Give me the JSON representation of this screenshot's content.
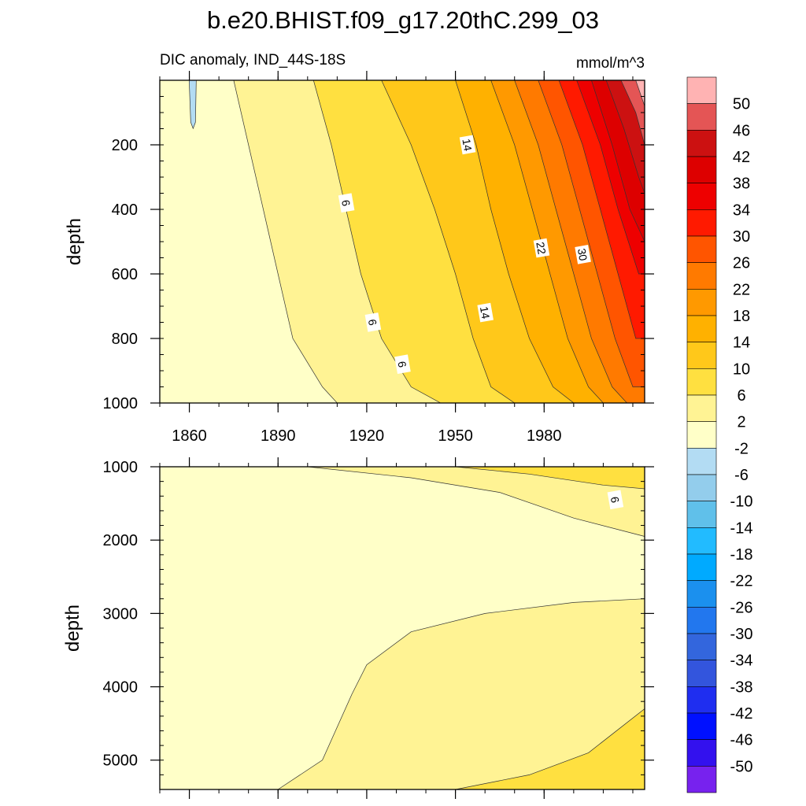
{
  "chart_data": {
    "type": "heatmap",
    "subtype": "filled-contour",
    "title": "b.e20.BHIST.f09_g17.20thC.299_03",
    "subtitle_left": "DIC anomaly, IND_44S-18S",
    "subtitle_right": "mmol/m^3",
    "xlabel": "",
    "ylabel": "depth",
    "x_range": [
      1850,
      2014
    ],
    "x_ticks": [
      "1860",
      "1890",
      "1920",
      "1950",
      "1980"
    ],
    "x_tick_values": [
      1860,
      1890,
      1920,
      1950,
      1980
    ],
    "panels": [
      {
        "name": "upper",
        "depth_range": [
          0,
          1000
        ],
        "y_ticks": [
          "200",
          "400",
          "600",
          "800",
          "1000"
        ],
        "y_tick_values": [
          200,
          400,
          600,
          800,
          1000
        ],
        "contour_boundary_years": [
          {
            "level": 2,
            "years": [
              1875,
              1880,
              1885,
              1890,
              1895,
              1905,
              1910
            ],
            "depths": [
              0,
              200,
              400,
              600,
              800,
              950,
              1000
            ]
          },
          {
            "level": 6,
            "years": [
              1902,
              1908,
              1913,
              1918,
              1925,
              1935,
              1945
            ],
            "depths": [
              0,
              200,
              400,
              600,
              800,
              950,
              1000
            ]
          },
          {
            "level": 10,
            "years": [
              1925,
              1935,
              1943,
              1950,
              1956,
              1962,
              1970
            ],
            "depths": [
              0,
              200,
              400,
              600,
              800,
              950,
              1000
            ]
          },
          {
            "level": 14,
            "years": [
              1950,
              1957,
              1962,
              1968,
              1975,
              1983,
              1990
            ],
            "depths": [
              0,
              200,
              400,
              600,
              800,
              950,
              1000
            ]
          },
          {
            "level": 18,
            "years": [
              1962,
              1970,
              1976,
              1982,
              1988,
              1995,
              2000
            ],
            "depths": [
              0,
              200,
              400,
              600,
              800,
              950,
              1000
            ]
          },
          {
            "level": 22,
            "years": [
              1970,
              1978,
              1984,
              1990,
              1996,
              2003,
              2008
            ],
            "depths": [
              0,
              200,
              400,
              600,
              800,
              950,
              1000
            ]
          },
          {
            "level": 26,
            "years": [
              1978,
              1986,
              1992,
              1998,
              2004,
              2010
            ],
            "depths": [
              0,
              200,
              400,
              600,
              800,
              950
            ]
          },
          {
            "level": 30,
            "years": [
              1985,
              1993,
              1999,
              2005,
              2011
            ],
            "depths": [
              0,
              200,
              400,
              600,
              800
            ]
          },
          {
            "level": 34,
            "years": [
              1991,
              1999,
              2005,
              2012
            ],
            "depths": [
              0,
              200,
              400,
              600
            ]
          },
          {
            "level": 38,
            "years": [
              1996,
              2003,
              2009,
              2014
            ],
            "depths": [
              0,
              200,
              400,
              500
            ]
          },
          {
            "level": 42,
            "years": [
              2001,
              2007,
              2012,
              2014
            ],
            "depths": [
              0,
              150,
              300,
              350
            ]
          },
          {
            "level": 46,
            "years": [
              2006,
              2011,
              2014
            ],
            "depths": [
              0,
              100,
              200
            ]
          },
          {
            "level": 50,
            "years": [
              2011,
              2014
            ],
            "depths": [
              0,
              80
            ]
          }
        ],
        "contour_labels": [
          {
            "text": "14",
            "year": 1954,
            "depth": 200
          },
          {
            "text": "6",
            "year": 1913,
            "depth": 380
          },
          {
            "text": "22",
            "year": 1979,
            "depth": 520
          },
          {
            "text": "30",
            "year": 1993,
            "depth": 540
          },
          {
            "text": "14",
            "year": 1960,
            "depth": 720
          },
          {
            "text": "6",
            "year": 1922,
            "depth": 750
          },
          {
            "text": "6",
            "year": 1932,
            "depth": 880
          }
        ],
        "negative_patch": {
          "level": -2,
          "year": 1861,
          "depth_max": 130
        }
      },
      {
        "name": "lower",
        "depth_range": [
          1000,
          5400
        ],
        "y_ticks": [
          "1000",
          "2000",
          "3000",
          "4000",
          "5000"
        ],
        "y_tick_values": [
          1000,
          2000,
          3000,
          4000,
          5000
        ],
        "regions": [
          {
            "level": 6,
            "note": "deep upper-right band"
          },
          {
            "level": 2,
            "note": "wedge from 1000m to ~2000m after 1900"
          },
          {
            "level": 2,
            "note": "abyssal plateau below ~2800m after 1915"
          },
          {
            "level": 6,
            "note": "bottom-right abyssal band"
          }
        ],
        "contour_labels": [
          {
            "text": "6",
            "year": 2004,
            "depth": 1450
          }
        ]
      }
    ],
    "colorbar": {
      "labels": [
        "50",
        "46",
        "42",
        "38",
        "34",
        "30",
        "26",
        "22",
        "18",
        "14",
        "10",
        "6",
        "2",
        "-2",
        "-6",
        "-10",
        "-14",
        "-18",
        "-22",
        "-26",
        "-30",
        "-34",
        "-38",
        "-42",
        "-46",
        "-50"
      ],
      "colors": [
        "#ffb3b3",
        "#e45555",
        "#cc1111",
        "#dd0000",
        "#ee0000",
        "#ff1a00",
        "#ff5500",
        "#ff7a00",
        "#ff9900",
        "#ffb100",
        "#ffc81a",
        "#ffe040",
        "#fff394",
        "#ffffc8",
        "#b3dcf3",
        "#93cdec",
        "#60c0ea",
        "#22bbff",
        "#00aaff",
        "#1b90ee",
        "#2277ee",
        "#3366dd",
        "#3355dd",
        "#1f2ef0",
        "#0010ff",
        "#3311ee",
        "#7722ee"
      ]
    }
  }
}
